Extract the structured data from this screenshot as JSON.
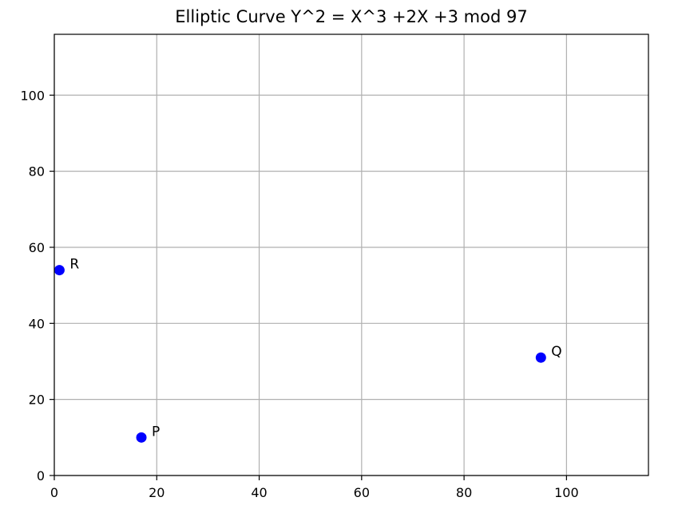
{
  "chart_data": {
    "type": "scatter",
    "title": "Elliptic Curve  Y^2 = X^3 +2X +3 mod 97",
    "xlabel": "",
    "ylabel": "",
    "xlim": [
      0,
      116
    ],
    "ylim": [
      0,
      116
    ],
    "xticks": [
      0,
      20,
      40,
      60,
      80,
      100
    ],
    "yticks": [
      0,
      20,
      40,
      60,
      80,
      100
    ],
    "grid": true,
    "point_color": "#0000ff",
    "points": [
      {
        "label": "P",
        "x": 17,
        "y": 10
      },
      {
        "label": "Q",
        "x": 95,
        "y": 31
      },
      {
        "label": "R",
        "x": 1,
        "y": 54
      }
    ]
  }
}
